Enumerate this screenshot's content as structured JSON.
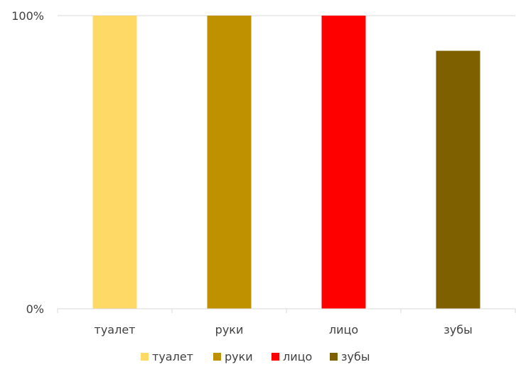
{
  "chart_data": {
    "type": "bar",
    "categories": [
      "туалет",
      "руки",
      "лицо",
      "зубы"
    ],
    "values": [
      100,
      100,
      100,
      88
    ],
    "colors": [
      "#FFD966",
      "#BF9000",
      "#FF0000",
      "#7F6000"
    ],
    "ylim": [
      0,
      100
    ],
    "yticks": [
      "0%",
      "100%"
    ],
    "grid": true,
    "legend": {
      "position": "bottom",
      "entries": [
        "туалет",
        "руки",
        "лицо",
        "зубы"
      ]
    }
  }
}
